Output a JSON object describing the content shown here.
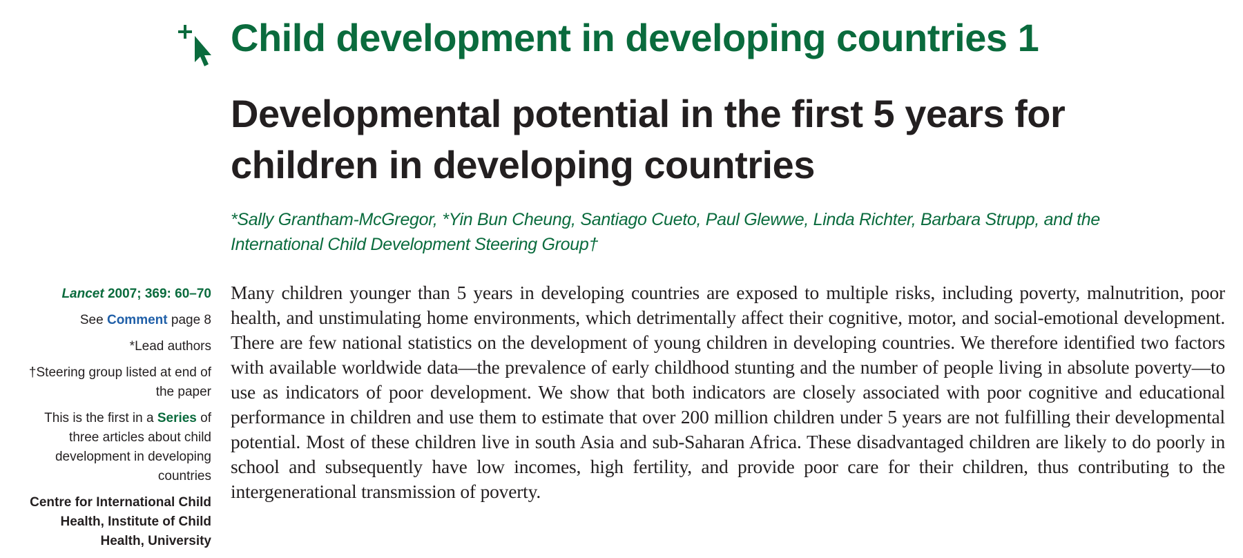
{
  "series_title": "Child development in developing countries 1",
  "article_title": "Developmental potential in the first 5 years for children in developing countries",
  "authors": "*Sally Grantham-McGregor, *Yin Bun Cheung, Santiago Cueto, Paul Glewwe, Linda Richter, Barbara Strupp, and the International Child Development Steering Group†",
  "sidebar": {
    "citation_journal": "Lancet",
    "citation_details": " 2007; 369: 60–70",
    "see_prefix": "See ",
    "see_link": "Comment",
    "see_suffix": " page 8",
    "lead_authors": "*Lead authors",
    "steering_note": "†Steering group listed at end of the paper",
    "series_prefix": "This is the first in a ",
    "series_link": "Series",
    "series_suffix": " of three articles about child development in developing countries",
    "affiliation": "Centre for International Child Health, Institute of Child Health, University"
  },
  "abstract": "Many children younger than 5 years in developing countries are exposed to multiple risks, including poverty, malnutrition, poor health, and unstimulating home environments, which detrimentally affect their cognitive, motor, and social-emotional development. There are few national statistics on the development of young children in developing countries. We therefore identified two factors with available worldwide data—the prevalence of early childhood stunting and the number of people living in absolute poverty—to use as indicators of poor development. We show that both indicators are closely associated with poor cognitive and educational performance in children and use them to estimate that over 200 million children under 5 years are not fulfilling their developmental potential. Most of these children live in south Asia and sub-Saharan Africa. These disadvantaged children are likely to do poorly in school and subsequently have low incomes, high fertility, and provide poor care for their children, thus contributing to the intergenerational transmission of poverty.",
  "colors": {
    "accent_green": "#0a6b3d",
    "link_blue": "#1f5fa8",
    "text": "#231f20"
  },
  "icons": {
    "crossmark": "crossmark-icon"
  }
}
